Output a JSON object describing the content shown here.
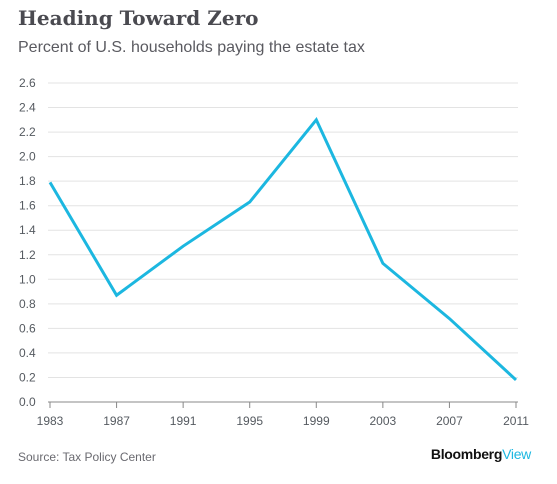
{
  "header": {
    "title": "Heading Toward Zero",
    "subtitle": "Percent of U.S. households paying the estate tax"
  },
  "footer": {
    "source": "Source: Tax Policy Center",
    "brand_main": "Bloomberg",
    "brand_sub": "View"
  },
  "colors": {
    "line": "#1cb7e0",
    "brand_accent": "#1cb7e0"
  },
  "chart_data": {
    "type": "line",
    "title": "Heading Toward Zero",
    "subtitle": "Percent of U.S. households paying the estate tax",
    "xlabel": "",
    "ylabel": "",
    "x": [
      1983,
      1987,
      1991,
      1995,
      1999,
      2003,
      2007,
      2011
    ],
    "x_tick_labels": [
      "1983",
      "1987",
      "1991",
      "1995",
      "1999",
      "2003",
      "2007",
      "2011"
    ],
    "series": [
      {
        "x": [
          1983,
          1987,
          1991,
          1995,
          1999,
          2003,
          2007,
          2011
        ],
        "values": [
          1.79,
          0.87,
          1.27,
          1.63,
          2.3,
          1.13,
          0.68,
          0.18
        ]
      }
    ],
    "ylim": [
      0,
      2.6
    ],
    "y_ticks": [
      0,
      0.2,
      0.4,
      0.6,
      0.8,
      1.0,
      1.2,
      1.4,
      1.6,
      1.8,
      2.0,
      2.2,
      2.4,
      2.6
    ],
    "y_tick_labels": [
      "0.0",
      "0.2",
      "0.4",
      "0.6",
      "0.8",
      "1.0",
      "1.2",
      "1.4",
      "1.6",
      "1.8",
      "2.0",
      "2.2",
      "2.4",
      "2.6"
    ],
    "grid": true,
    "legend": "none"
  }
}
